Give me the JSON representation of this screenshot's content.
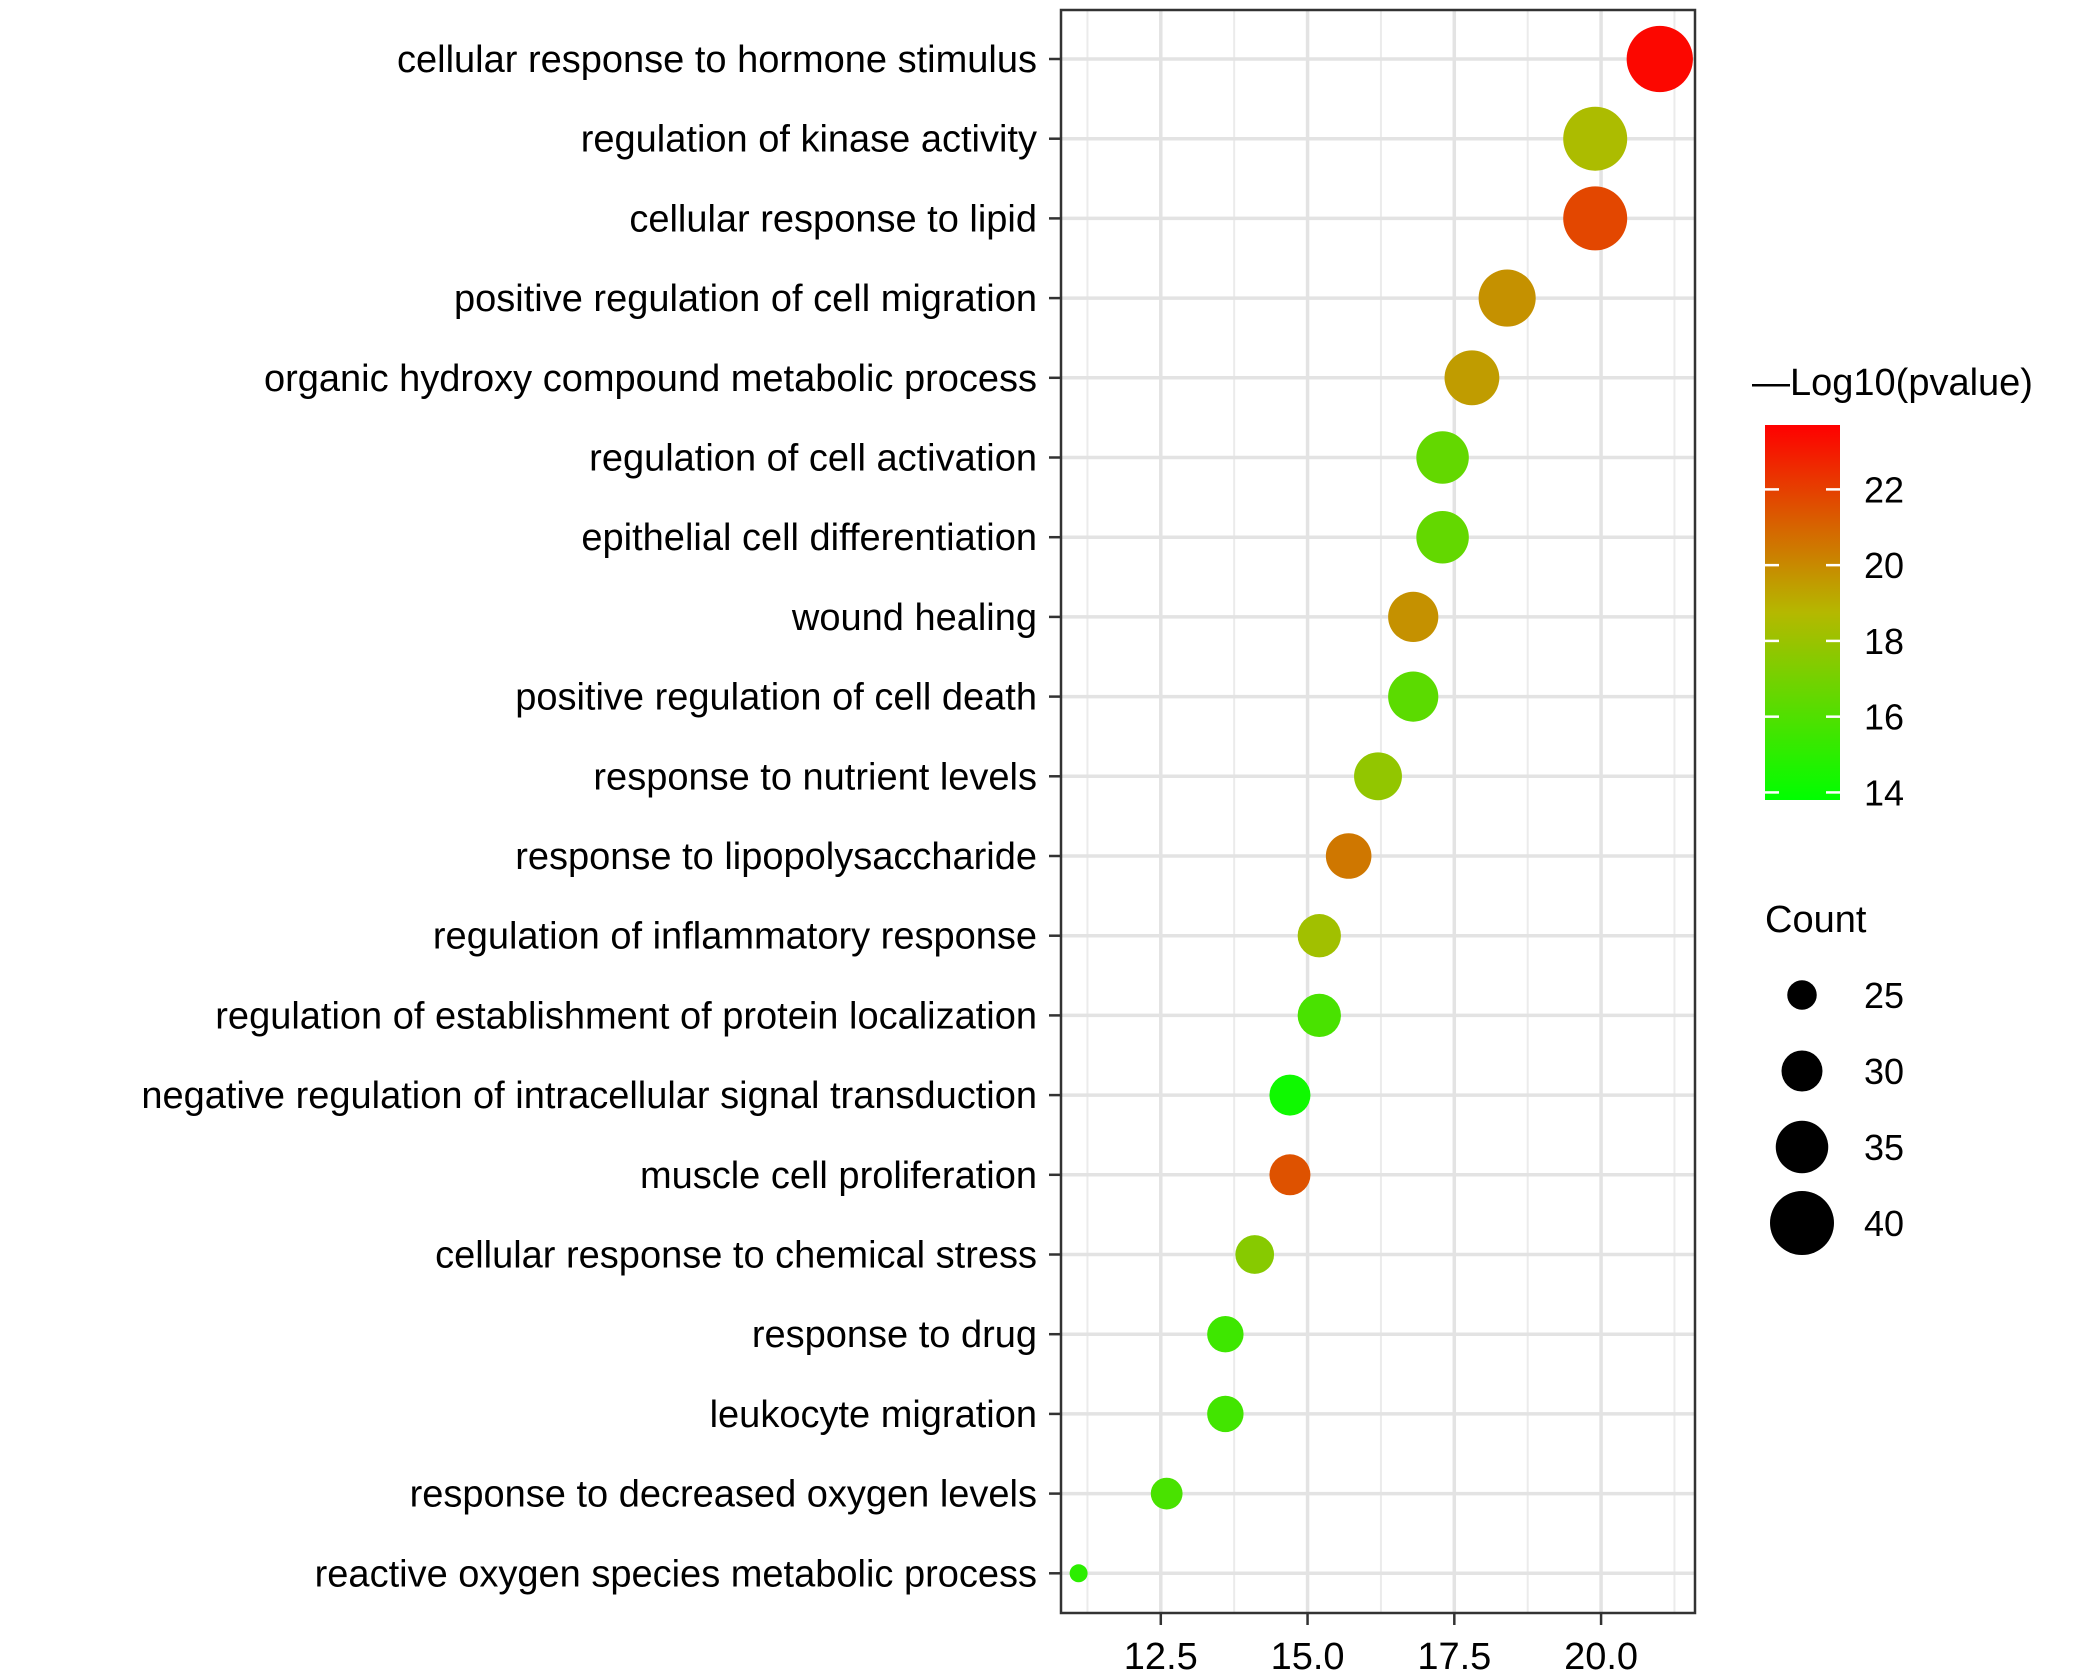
{
  "chart_data": {
    "type": "scatter",
    "title": "",
    "xlabel": "",
    "ylabel": "",
    "xlim": [
      10.8,
      21.6
    ],
    "x_ticks": [
      "12.5",
      "15.0",
      "17.5",
      "20.0"
    ],
    "x_tick_values": [
      12.5,
      15.0,
      17.5,
      20.0
    ],
    "grid": true,
    "legend_position": "right",
    "points": [
      {
        "term": "cellular response to hormone stimulus",
        "x": 21.0,
        "count": 41,
        "log10p": 23.5
      },
      {
        "term": "regulation of kinase activity",
        "x": 19.9,
        "count": 40,
        "log10p": 18.5
      },
      {
        "term": "cellular response to lipid",
        "x": 19.9,
        "count": 40,
        "log10p": 21.8
      },
      {
        "term": "positive regulation of cell migration",
        "x": 18.4,
        "count": 37,
        "log10p": 19.8
      },
      {
        "term": "organic hydroxy compound metabolic process",
        "x": 17.8,
        "count": 36,
        "log10p": 19.5
      },
      {
        "term": "regulation of cell activation",
        "x": 17.3,
        "count": 35,
        "log10p": 16.5
      },
      {
        "term": "epithelial cell differentiation",
        "x": 17.3,
        "count": 35,
        "log10p": 16.5
      },
      {
        "term": "wound healing",
        "x": 16.8,
        "count": 34,
        "log10p": 19.8
      },
      {
        "term": "positive regulation of cell death",
        "x": 16.8,
        "count": 34,
        "log10p": 16.3
      },
      {
        "term": "response to nutrient levels",
        "x": 16.2,
        "count": 33,
        "log10p": 17.8
      },
      {
        "term": "response to lipopolysaccharide",
        "x": 15.7,
        "count": 32,
        "log10p": 20.5
      },
      {
        "term": "regulation of inflammatory response",
        "x": 15.2,
        "count": 31,
        "log10p": 18.2
      },
      {
        "term": "regulation of establishment of protein localization",
        "x": 15.2,
        "count": 31,
        "log10p": 15.8
      },
      {
        "term": "negative regulation of intracellular signal transduction",
        "x": 14.7,
        "count": 30,
        "log10p": 14.2
      },
      {
        "term": "muscle cell proliferation",
        "x": 14.7,
        "count": 30,
        "log10p": 21.5
      },
      {
        "term": "cellular response to chemical stress",
        "x": 14.1,
        "count": 29,
        "log10p": 17.5
      },
      {
        "term": "response to drug",
        "x": 13.6,
        "count": 28,
        "log10p": 15.5
      },
      {
        "term": "leukocyte migration",
        "x": 13.6,
        "count": 28,
        "log10p": 15.6
      },
      {
        "term": "response to decreased oxygen levels",
        "x": 12.6,
        "count": 26,
        "log10p": 15.8
      },
      {
        "term": "reactive oxygen species metabolic process",
        "x": 11.1,
        "count": 20,
        "log10p": 15.0
      }
    ],
    "color_legend": {
      "title": "—Log10(pvalue)",
      "min": 13.8,
      "max": 23.7,
      "ticks": [
        "14",
        "16",
        "18",
        "20",
        "22"
      ],
      "tick_values": [
        14,
        16,
        18,
        20,
        22
      ],
      "low_color": "#00ff00",
      "mid_color": "#b5b800",
      "high_color": "#ff0000"
    },
    "size_legend": {
      "title": "Count",
      "entries": [
        "25",
        "30",
        "35",
        "40"
      ],
      "entry_values": [
        25,
        30,
        35,
        40
      ]
    }
  }
}
